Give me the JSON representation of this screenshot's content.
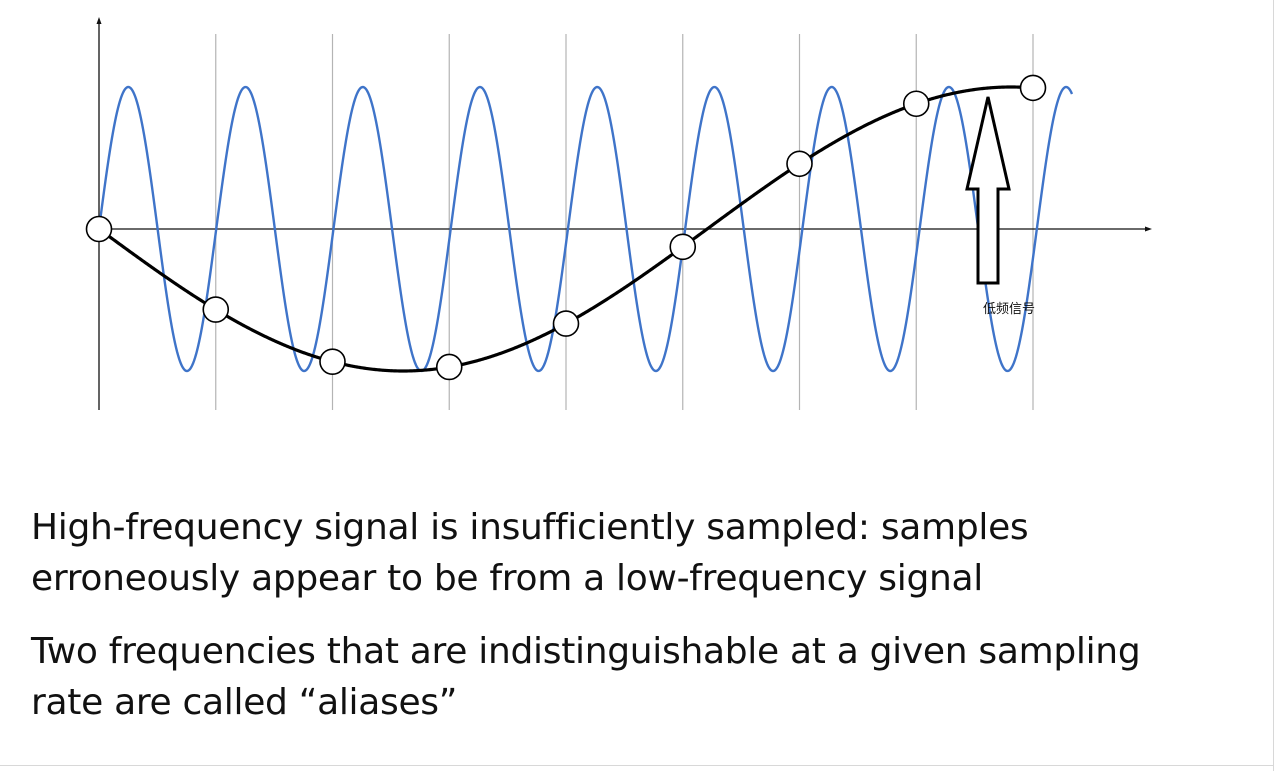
{
  "diagram": {
    "annotation_label": "低频信号",
    "high_freq_color": "#3f74c9",
    "low_freq_color": "#000000",
    "high_freq_cycles_over_window": 8.3,
    "low_freq_cycles_over_window": 0.8,
    "sample_count": 9
  },
  "text": {
    "para1_line1": "High-frequency signal is insufficiently sampled: samples",
    "para1_line2": "erroneously appear to be from a low-frequency signal",
    "para2_line1": "Two frequencies that are indistinguishable at a given sampling",
    "para2_line2": "rate are called “aliases”"
  }
}
